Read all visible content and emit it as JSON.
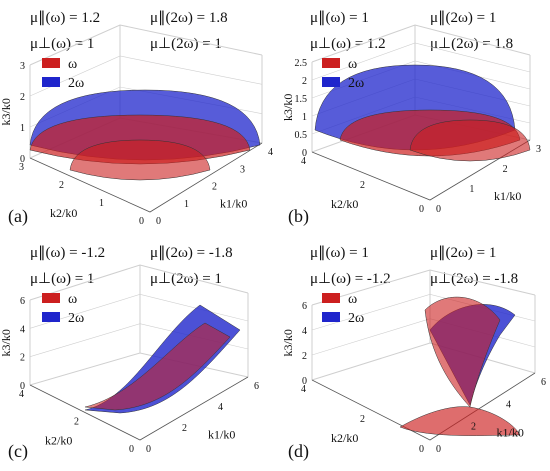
{
  "colors": {
    "omega": "#cc1f1f",
    "two_omega": "#1f25cc",
    "axis": "#555555",
    "grid": "#cfcfcf"
  },
  "panels": [
    {
      "label": "(a)",
      "params": [
        "μ∥(ω) = 1.2",
        "μ∥(2ω) = 1.8",
        "μ⊥(ω) = 1",
        "μ⊥(2ω) = 1"
      ],
      "legend": [
        "ω",
        "2ω"
      ],
      "axes": {
        "z_label": "k3/k0",
        "x_label": "k1/k0",
        "y_label": "k2/k0",
        "z_ticks": [
          "0",
          "1",
          "2",
          "3"
        ],
        "x_ticks": [
          "0",
          "1",
          "2",
          "3",
          "4"
        ],
        "y_ticks": [
          "3",
          "2",
          "1",
          "0"
        ]
      },
      "surface": "ellipsoid"
    },
    {
      "label": "(b)",
      "params": [
        "μ∥(ω) = 1",
        "μ∥(2ω) = 1",
        "μ⊥(ω) = 1.2",
        "μ⊥(2ω) = 1.8"
      ],
      "legend": [
        "ω",
        "2ω"
      ],
      "axes": {
        "z_label": "k3/k0",
        "x_label": "k1/k0",
        "y_label": "k2/k0",
        "z_ticks": [
          "0",
          "0.5",
          "1",
          "1.5",
          "2",
          "2.5"
        ],
        "x_ticks": [
          "0",
          "1",
          "2",
          "3"
        ],
        "y_ticks": [
          "4",
          "2",
          "0"
        ]
      },
      "surface": "ellipsoid"
    },
    {
      "label": "(c)",
      "params": [
        "μ∥(ω) = -1.2",
        "μ∥(2ω) = -1.8",
        "μ⊥(ω) = 1",
        "μ⊥(2ω) = 1"
      ],
      "legend": [
        "ω",
        "2ω"
      ],
      "axes": {
        "z_label": "k3/k0",
        "x_label": "k1/k0",
        "y_label": "k2/k0",
        "z_ticks": [
          "0",
          "2",
          "4",
          "6"
        ],
        "x_ticks": [
          "0",
          "2",
          "4",
          "6"
        ],
        "y_ticks": [
          "4",
          "2",
          "0"
        ]
      },
      "surface": "hyperboloid-sheet"
    },
    {
      "label": "(d)",
      "params": [
        "μ∥(ω) = 1",
        "μ∥(2ω) = 1",
        "μ⊥(ω) = -1.2",
        "μ⊥(2ω) = -1.8"
      ],
      "legend": [
        "ω",
        "2ω"
      ],
      "axes": {
        "z_label": "k3/k0",
        "x_label": "k1/k0",
        "y_label": "k2/k0",
        "z_ticks": [
          "0",
          "2",
          "4",
          "6"
        ],
        "x_ticks": [
          "0",
          "2",
          "4",
          "6"
        ],
        "y_ticks": [
          "4",
          "2",
          "0"
        ]
      },
      "surface": "hyperboloid-two"
    }
  ],
  "chart_data": [
    {
      "type": "surface3d",
      "panel": "(a)",
      "series": [
        {
          "name": "ω",
          "mu_par": 1.2,
          "mu_perp": 1
        },
        {
          "name": "2ω",
          "mu_par": 1.8,
          "mu_perp": 1
        }
      ],
      "xlim": [
        0,
        4
      ],
      "ylim": [
        0,
        3
      ],
      "zlim": [
        0,
        3
      ]
    },
    {
      "type": "surface3d",
      "panel": "(b)",
      "series": [
        {
          "name": "ω",
          "mu_par": 1,
          "mu_perp": 1.2
        },
        {
          "name": "2ω",
          "mu_par": 1,
          "mu_perp": 1.8
        }
      ],
      "xlim": [
        0,
        3
      ],
      "ylim": [
        0,
        4
      ],
      "zlim": [
        0,
        2.5
      ]
    },
    {
      "type": "surface3d",
      "panel": "(c)",
      "series": [
        {
          "name": "ω",
          "mu_par": -1.2,
          "mu_perp": 1
        },
        {
          "name": "2ω",
          "mu_par": -1.8,
          "mu_perp": 1
        }
      ],
      "xlim": [
        0,
        6
      ],
      "ylim": [
        0,
        4
      ],
      "zlim": [
        0,
        6
      ]
    },
    {
      "type": "surface3d",
      "panel": "(d)",
      "series": [
        {
          "name": "ω",
          "mu_par": 1,
          "mu_perp": -1.2
        },
        {
          "name": "2ω",
          "mu_par": 1,
          "mu_perp": -1.8
        }
      ],
      "xlim": [
        0,
        6
      ],
      "ylim": [
        0,
        4
      ],
      "zlim": [
        0,
        6
      ]
    }
  ]
}
